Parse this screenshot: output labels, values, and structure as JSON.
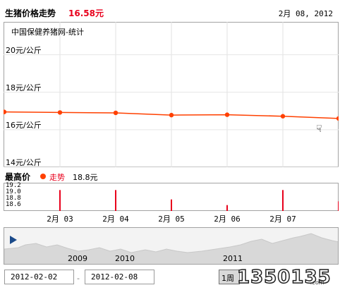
{
  "header": {
    "title": "生猪价格走势",
    "price": "16.58元",
    "date": "2月 08, 2012"
  },
  "chart_data": {
    "type": "line",
    "source": "中国保健养猪网-统计",
    "y_ticks": [
      "20元/公斤",
      "18元/公斤",
      "16元/公斤",
      "14元/公斤"
    ],
    "ylim": [
      14,
      21
    ],
    "x": [
      0,
      1,
      2,
      3,
      4,
      5,
      6
    ],
    "values": [
      16.95,
      16.92,
      16.9,
      16.78,
      16.8,
      16.72,
      16.6
    ],
    "series_color": "#ff4000",
    "grid": true,
    "x_ticks": [
      {
        "pos": 1,
        "label": "2月 03"
      },
      {
        "pos": 2,
        "label": "2月 04"
      },
      {
        "pos": 3,
        "label": "2月 05"
      },
      {
        "pos": 4,
        "label": "2月 06"
      },
      {
        "pos": 5,
        "label": "2月 07"
      }
    ]
  },
  "sub_chart": {
    "title": "最高价",
    "legend_name": "走势",
    "legend_value": "18.8元",
    "y_ticks": [
      "19.2",
      "19.0",
      "18.8",
      "18.6"
    ],
    "ylim": [
      18.6,
      19.2
    ],
    "bars": [
      {
        "x": 1,
        "value": 19.1
      },
      {
        "x": 2,
        "value": 19.1
      },
      {
        "x": 3,
        "value": 18.85
      },
      {
        "x": 4,
        "value": 18.7
      },
      {
        "x": 5,
        "value": 19.1
      },
      {
        "x": 6,
        "value": 18.8
      }
    ]
  },
  "navigator": {
    "years": [
      "2009",
      "2010",
      "2011"
    ]
  },
  "range": {
    "start": "2012-02-02",
    "end": "2012-02-08",
    "week_button": "1周"
  },
  "watermark": {
    "text": "1350135",
    "sub": ".com"
  }
}
